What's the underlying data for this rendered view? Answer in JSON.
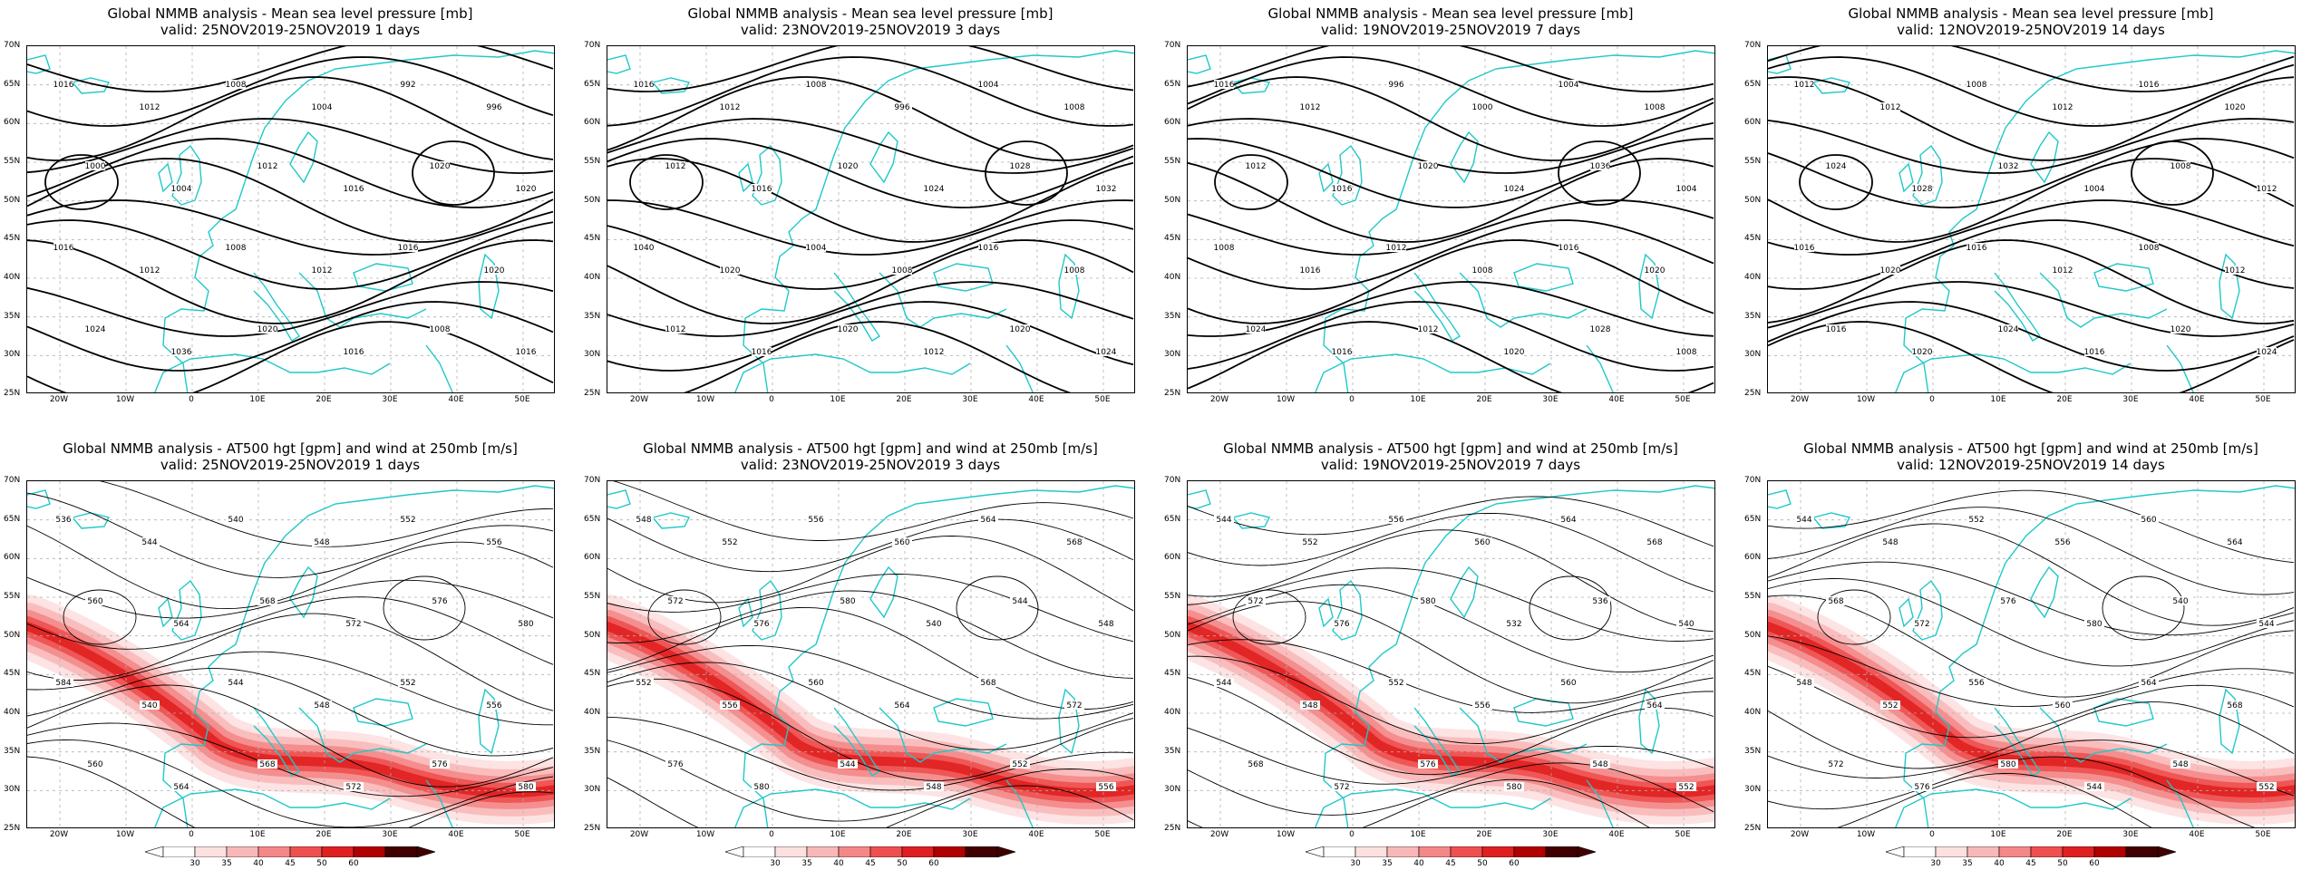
{
  "panels": [
    {
      "title1": "Global NMMB analysis - Mean sea level pressure [mb]",
      "title2": "valid: 25NOV2019-25NOV2019  1 days",
      "type": "mslp",
      "labels": [
        "1016",
        "1012",
        "1008",
        "1004",
        "992",
        "996",
        "1000",
        "1004",
        "1012",
        "1016",
        "1020",
        "1020",
        "1016",
        "1012",
        "1008",
        "1012",
        "1016",
        "1020",
        "1024",
        "1036",
        "1020",
        "1016",
        "1008",
        "1016"
      ]
    },
    {
      "title1": "Global NMMB analysis - Mean sea level pressure [mb]",
      "title2": "valid: 23NOV2019-25NOV2019  3 days",
      "type": "mslp",
      "labels": [
        "1016",
        "1012",
        "1008",
        "996",
        "1004",
        "1008",
        "1012",
        "1016",
        "1020",
        "1024",
        "1028",
        "1032",
        "1040",
        "1020",
        "1004",
        "1008",
        "1016",
        "1008",
        "1012",
        "1016",
        "1020",
        "1012",
        "1020",
        "1024"
      ]
    },
    {
      "title1": "Global NMMB analysis - Mean sea level pressure [mb]",
      "title2": "valid: 19NOV2019-25NOV2019  7 days",
      "type": "mslp",
      "labels": [
        "1016",
        "1012",
        "996",
        "1000",
        "1004",
        "1008",
        "1012",
        "1016",
        "1020",
        "1024",
        "1036",
        "1004",
        "1008",
        "1016",
        "1012",
        "1008",
        "1016",
        "1020",
        "1024",
        "1016",
        "1012",
        "1020",
        "1028",
        "1008"
      ]
    },
    {
      "title1": "Global NMMB analysis - Mean sea level pressure [mb]",
      "title2": "valid: 12NOV2019-25NOV2019  14 days",
      "type": "mslp",
      "labels": [
        "1012",
        "1012",
        "1008",
        "1012",
        "1016",
        "1020",
        "1024",
        "1028",
        "1032",
        "1004",
        "1008",
        "1012",
        "1016",
        "1020",
        "1016",
        "1012",
        "1008",
        "1012",
        "1016",
        "1020",
        "1024",
        "1016",
        "1020",
        "1024"
      ]
    },
    {
      "title1": "Global NMMB analysis - AT500 hgt [gpm] and wind at 250mb [m/s]",
      "title2": "valid: 25NOV2019-25NOV2019  1 days",
      "type": "z500",
      "labels": [
        "536",
        "544",
        "540",
        "548",
        "552",
        "556",
        "560",
        "564",
        "568",
        "572",
        "576",
        "580",
        "584",
        "540",
        "544",
        "548",
        "552",
        "556",
        "560",
        "564",
        "568",
        "572",
        "576",
        "580"
      ]
    },
    {
      "title1": "Global NMMB analysis - AT500 hgt [gpm] and wind at 250mb [m/s]",
      "title2": "valid: 23NOV2019-25NOV2019  3 days",
      "type": "z500",
      "labels": [
        "548",
        "552",
        "556",
        "560",
        "564",
        "568",
        "572",
        "576",
        "580",
        "540",
        "544",
        "548",
        "552",
        "556",
        "560",
        "564",
        "568",
        "572",
        "576",
        "580",
        "544",
        "548",
        "552",
        "556"
      ]
    },
    {
      "title1": "Global NMMB analysis - AT500 hgt [gpm] and wind at 250mb [m/s]",
      "title2": "valid: 19NOV2019-25NOV2019  7 days",
      "type": "z500",
      "labels": [
        "544",
        "552",
        "556",
        "560",
        "564",
        "568",
        "572",
        "576",
        "580",
        "532",
        "536",
        "540",
        "544",
        "548",
        "552",
        "556",
        "560",
        "564",
        "568",
        "572",
        "576",
        "580",
        "548",
        "552"
      ]
    },
    {
      "title1": "Global NMMB analysis - AT500 hgt [gpm] and wind at 250mb [m/s]",
      "title2": "valid: 12NOV2019-25NOV2019  14 days",
      "type": "z500",
      "labels": [
        "544",
        "548",
        "552",
        "556",
        "560",
        "564",
        "568",
        "572",
        "576",
        "580",
        "540",
        "544",
        "548",
        "552",
        "556",
        "560",
        "564",
        "568",
        "572",
        "576",
        "580",
        "544",
        "548",
        "552"
      ]
    }
  ],
  "lat_labels": [
    "70N",
    "65N",
    "60N",
    "55N",
    "50N",
    "45N",
    "40N",
    "35N",
    "30N",
    "25N"
  ],
  "lon_labels": [
    "20W",
    "10W",
    "0",
    "10E",
    "20E",
    "30E",
    "40E",
    "50E"
  ],
  "colorbar": {
    "ticks": [
      "30",
      "35",
      "40",
      "45",
      "50",
      "60"
    ],
    "colors": [
      "#ffffff",
      "#fde0e0",
      "#f9b8b8",
      "#f48888",
      "#ee5050",
      "#e02020",
      "#b00000",
      "#400000"
    ]
  },
  "colors": {
    "coast": "#20c8c8",
    "isobar": "#000000",
    "grid": "#b0b0b0"
  }
}
